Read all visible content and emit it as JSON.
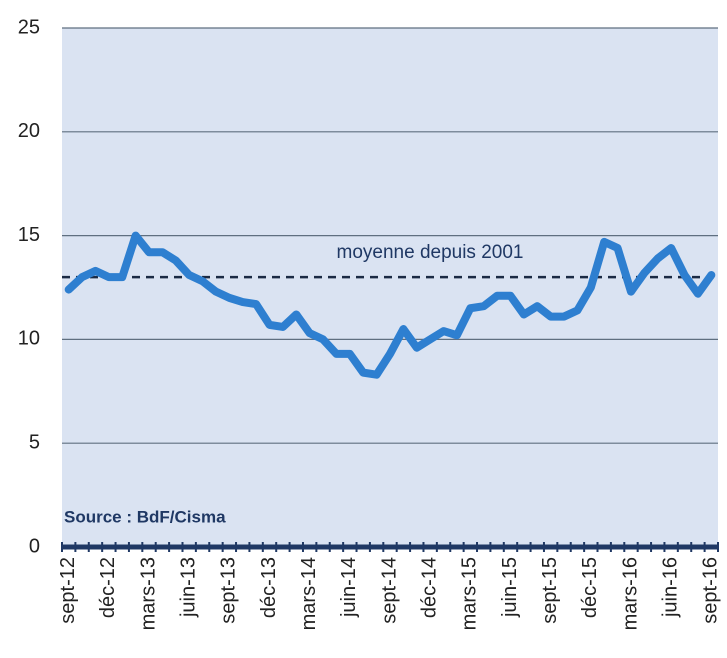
{
  "chart_data": {
    "type": "line",
    "categories": [
      "sept-12",
      null,
      null,
      "déc-12",
      null,
      null,
      "mars-13",
      null,
      null,
      "juin-13",
      null,
      null,
      "sept-13",
      null,
      null,
      "déc-13",
      null,
      null,
      "mars-14",
      null,
      null,
      "juin-14",
      null,
      null,
      "sept-14",
      null,
      null,
      "déc-14",
      null,
      null,
      "mars-15",
      null,
      null,
      "juin-15",
      null,
      null,
      "sept-15",
      null,
      null,
      "déc-15",
      null,
      null,
      "mars-16",
      null,
      null,
      "juin-16",
      null,
      null,
      "sept-16"
    ],
    "series": [
      {
        "color": "#2e7fd0",
        "values": [
          12.4,
          13.0,
          13.3,
          13.0,
          13.0,
          15.0,
          14.2,
          14.2,
          13.8,
          13.1,
          12.8,
          12.3,
          12.0,
          11.8,
          11.7,
          10.7,
          10.6,
          11.2,
          10.3,
          10.0,
          9.3,
          9.3,
          8.4,
          8.3,
          9.3,
          10.5,
          9.6,
          10.0,
          10.4,
          10.2,
          11.5,
          11.6,
          12.1,
          12.1,
          11.2,
          11.6,
          11.1,
          11.1,
          11.4,
          12.5,
          14.7,
          14.4,
          12.3,
          13.2,
          13.9,
          14.4,
          13.1,
          12.2,
          13.1
        ]
      }
    ],
    "reference_line": {
      "value": 13,
      "label": "moyenne depuis 2001"
    },
    "source": "Source : BdF/Cisma",
    "ylim": [
      0,
      25
    ],
    "yticks": [
      0,
      5,
      10,
      15,
      20,
      25
    ],
    "grid": true
  }
}
